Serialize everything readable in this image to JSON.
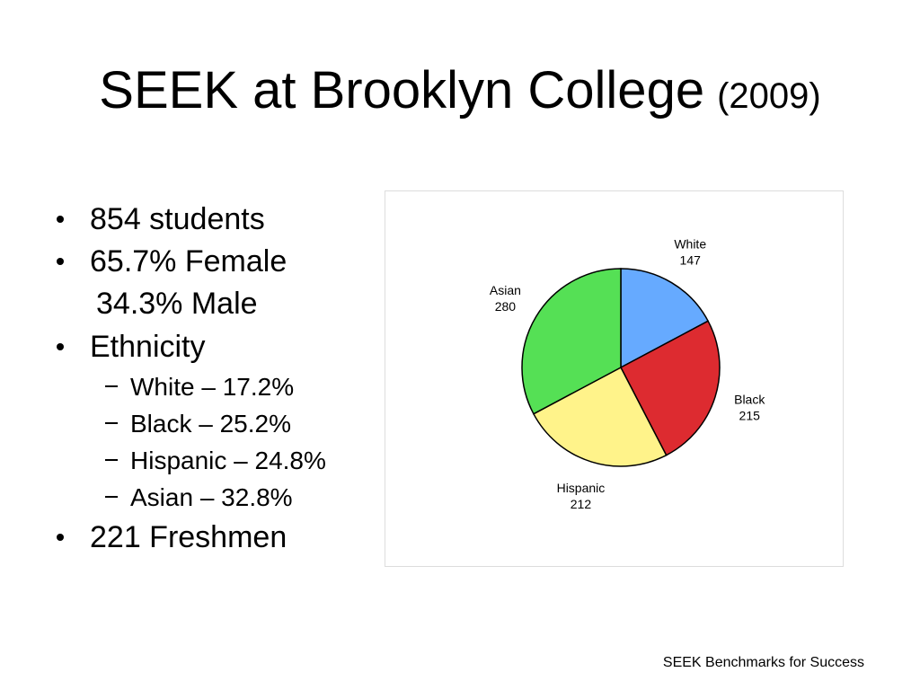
{
  "slide": {
    "title": "SEEK at Brooklyn College",
    "title_year": "(2009)",
    "bullets": [
      {
        "text": "854 students"
      },
      {
        "text": "65.7% Female",
        "continuation": "34.3% Male"
      },
      {
        "text": "Ethnicity",
        "sub": [
          "White – 17.2%",
          "Black – 25.2%",
          "Hispanic – 24.8%",
          "Asian – 32.8%"
        ]
      },
      {
        "text": "221 Freshmen"
      }
    ],
    "footer": "SEEK Benchmarks for Success"
  },
  "chart_data": {
    "type": "pie",
    "categories": [
      "White",
      "Black",
      "Hispanic",
      "Asian"
    ],
    "values": [
      147,
      215,
      212,
      280
    ],
    "colors": [
      "#66aaff",
      "#dd2b30",
      "#fff38a",
      "#55e055"
    ]
  }
}
